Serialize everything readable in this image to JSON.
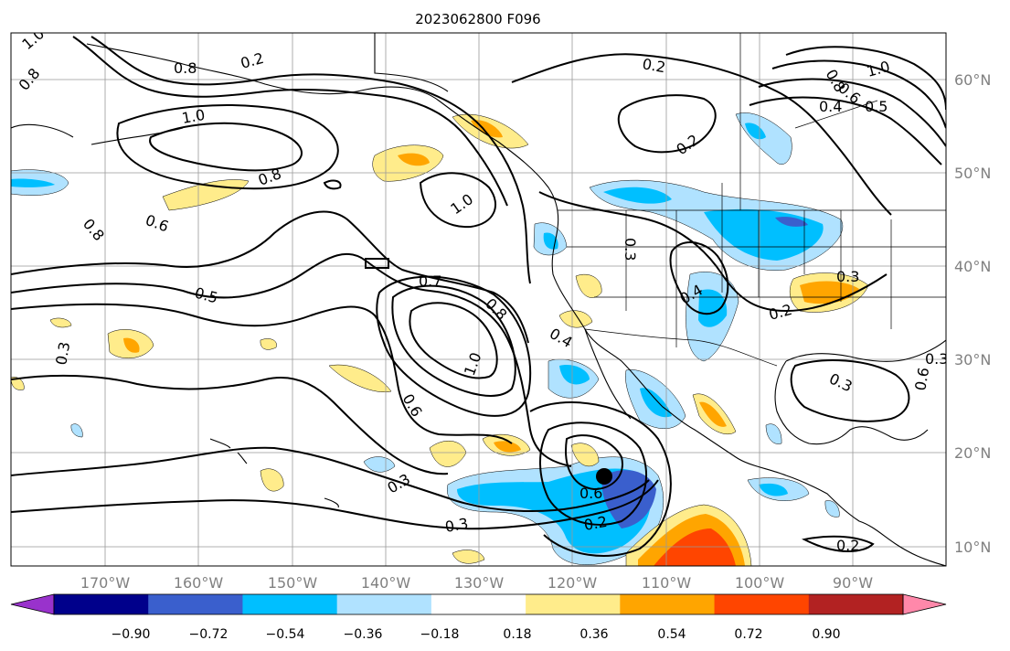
{
  "title": "2023062800 F096",
  "map": {
    "lon_labels": [
      "170°W",
      "160°W",
      "150°W",
      "140°W",
      "130°W",
      "120°W",
      "110°W",
      "100°W",
      "90°W"
    ],
    "lat_labels": [
      "60°N",
      "50°N",
      "40°N",
      "30°N",
      "20°N",
      "10°N"
    ],
    "contour_labels": [
      "1.0",
      "0.8",
      "0.2",
      "0.8",
      "0.6",
      "1.0",
      "0.8",
      "0.6",
      "0.8",
      "0.2",
      "1.0",
      "0.5",
      "0.7",
      "0.8",
      "0.3",
      "1.0",
      "0.6",
      "0.4",
      "0.3",
      "0.3",
      "0.3",
      "0.6",
      "0.2",
      "0.2",
      "0.4",
      "0.2",
      "0.3",
      "0.3",
      "1.0",
      "0.8",
      "0.6",
      "0.4",
      "0.5",
      "0.3",
      "0.2"
    ],
    "marker": "storm-position"
  },
  "colorbar": {
    "ticks": [
      "−0.90",
      "−0.72",
      "−0.54",
      "−0.36",
      "−0.18",
      "0.18",
      "0.36",
      "0.54",
      "0.72",
      "0.90"
    ],
    "colors": [
      "#9932cc",
      "#00008b",
      "#3a5fcd",
      "#00bfff",
      "#b0e2ff",
      "#ffffff",
      "#ffec8b",
      "#ffa500",
      "#ff4500",
      "#b22222",
      "#ff88aa"
    ]
  },
  "palette": {
    "light_blue": "#b0e2ff",
    "blue": "#00bfff",
    "royal_blue": "#3a5fcd",
    "yellow": "#ffec8b",
    "orange": "#ffa500",
    "red_orange": "#ff4500"
  }
}
